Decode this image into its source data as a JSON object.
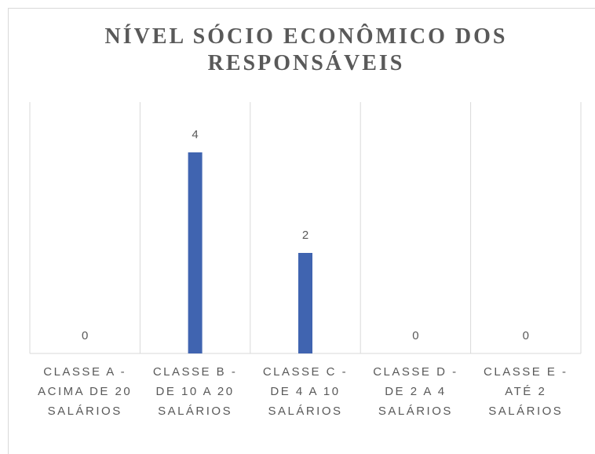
{
  "chart_data": {
    "type": "bar",
    "title": "NÍVEL SÓCIO ECONÔMICO DOS RESPONSÁVEIS",
    "categories": [
      "CLASSE A - ACIMA DE 20 SALÁRIOS",
      "CLASSE B - DE 10 A 20 SALÁRIOS",
      "CLASSE C - DE 4 A 10 SALÁRIOS",
      "CLASSE D - DE 2 A 4 SALÁRIOS",
      "CLASSE E - ATÉ 2 SALÁRIOS"
    ],
    "values": [
      0,
      4,
      2,
      0,
      0
    ],
    "color": "#4064b0",
    "ylim": [
      0,
      5
    ],
    "grid": true
  }
}
